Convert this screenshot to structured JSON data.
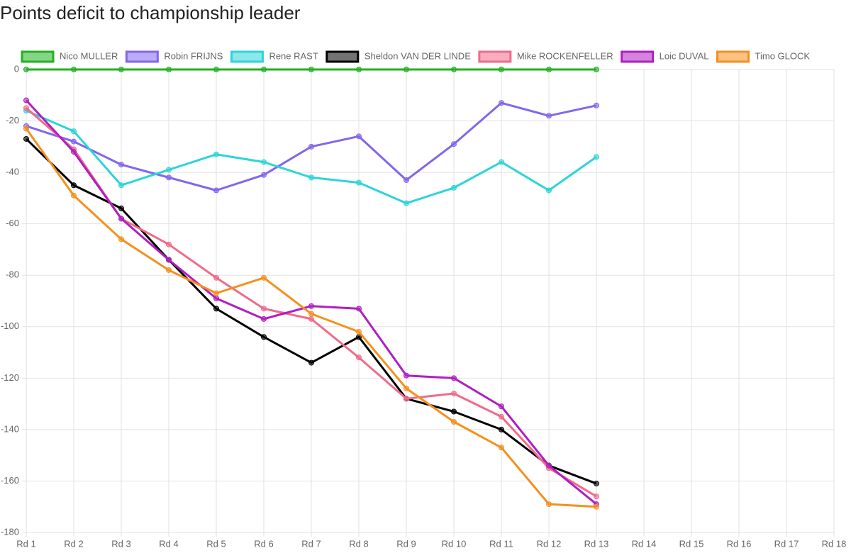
{
  "chart_data": {
    "type": "line",
    "title": "Points deficit to championship leader",
    "categories": [
      "Rd 1",
      "Rd 2",
      "Rd 3",
      "Rd 4",
      "Rd 5",
      "Rd 6",
      "Rd 7",
      "Rd 8",
      "Rd 9",
      "Rd 10",
      "Rd 11",
      "Rd 12",
      "Rd 13",
      "Rd 14",
      "Rd 15",
      "Rd 16",
      "Rd 17",
      "Rd 18"
    ],
    "series": [
      {
        "name": "Nico MULLER",
        "color": "#22b022",
        "values": [
          0,
          0,
          0,
          0,
          0,
          0,
          0,
          0,
          0,
          0,
          0,
          0,
          0,
          null,
          null,
          null,
          null,
          null
        ]
      },
      {
        "name": "Robin FRIJNS",
        "color": "#8266ee",
        "values": [
          -22,
          -28,
          -37,
          -42,
          -47,
          -41,
          -30,
          -26,
          -43,
          -29,
          -13,
          -18,
          -14,
          null,
          null,
          null,
          null,
          null
        ]
      },
      {
        "name": "Rene RAST",
        "color": "#2dd4d8",
        "values": [
          -16,
          -24,
          -45,
          -39,
          -33,
          -36,
          -42,
          -44,
          -52,
          -46,
          -36,
          -47,
          -34,
          null,
          null,
          null,
          null,
          null
        ]
      },
      {
        "name": "Sheldon VAN DER LINDE",
        "color": "#000000",
        "values": [
          -27,
          -45,
          -54,
          -74,
          -93,
          -104,
          -114,
          -104,
          -128,
          -133,
          -140,
          -154,
          -161,
          null,
          null,
          null,
          null,
          null
        ]
      },
      {
        "name": "Mike ROCKENFELLER",
        "color": "#f06b8a",
        "values": [
          -15,
          -31,
          -58,
          -68,
          -81,
          -93,
          -97,
          -112,
          -128,
          -126,
          -135,
          -155,
          -166,
          null,
          null,
          null,
          null,
          null
        ]
      },
      {
        "name": "Loic DUVAL",
        "color": "#b01fc0",
        "values": [
          -12,
          -32,
          -58,
          -74,
          -89,
          -97,
          -92,
          -93,
          -119,
          -120,
          -131,
          -154,
          -169,
          null,
          null,
          null,
          null,
          null
        ]
      },
      {
        "name": "Timo GLOCK",
        "color": "#f5901e",
        "values": [
          -23,
          -49,
          -66,
          -78,
          -87,
          -81,
          -95,
          -102,
          -124,
          -137,
          -147,
          -169,
          -170,
          null,
          null,
          null,
          null,
          null
        ]
      }
    ],
    "ylim": [
      -180,
      0
    ],
    "yticks": [
      0,
      -20,
      -40,
      -60,
      -80,
      -100,
      -120,
      -140,
      -160,
      -180
    ],
    "grid": true,
    "legend": "top"
  }
}
